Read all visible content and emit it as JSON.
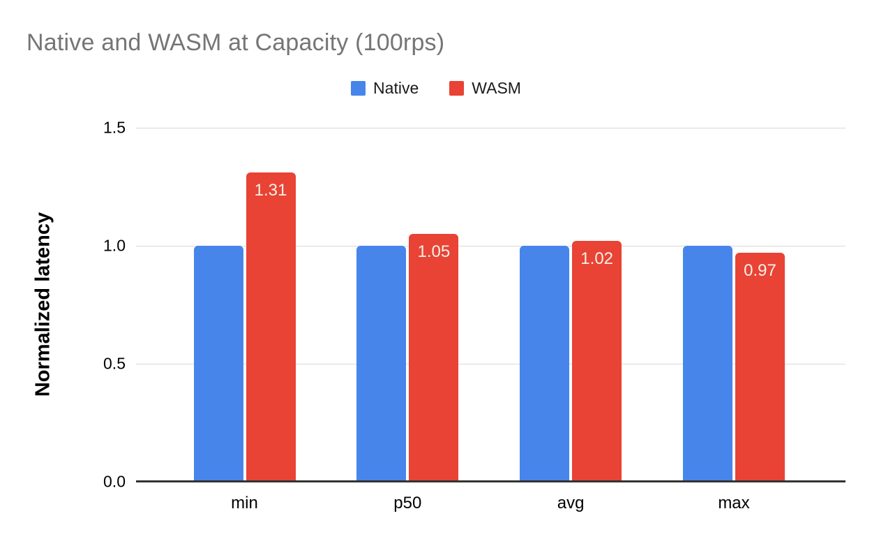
{
  "header": {
    "title": "Native and WASM at Capacity (100rps)"
  },
  "chart_data": {
    "type": "bar",
    "title": "Native and WASM at Capacity (100rps)",
    "categories": [
      "min",
      "p50",
      "avg",
      "max"
    ],
    "series": [
      {
        "name": "Native",
        "color": "#4785EB",
        "values": [
          1.0,
          1.0,
          1.0,
          1.0
        ],
        "labels": [
          "",
          "",
          "",
          ""
        ]
      },
      {
        "name": "WASM",
        "color": "#E84335",
        "values": [
          1.31,
          1.05,
          1.02,
          0.97
        ],
        "labels": [
          "1.31",
          "1.05",
          "1.02",
          "0.97"
        ]
      }
    ],
    "xlabel": "",
    "ylabel": "Normalized latency",
    "ylim": [
      0,
      1.5
    ],
    "yticks": [
      0.0,
      0.5,
      1.0,
      1.5
    ],
    "ytick_labels": [
      "0.0",
      "0.5",
      "1.0",
      "1.5"
    ],
    "grid": true,
    "legend_position": "top-center",
    "data_label_color": "#f7f1e8",
    "gridline_color": "#d9d9d9",
    "baseline_color": "#333333",
    "title_color": "#757575"
  }
}
